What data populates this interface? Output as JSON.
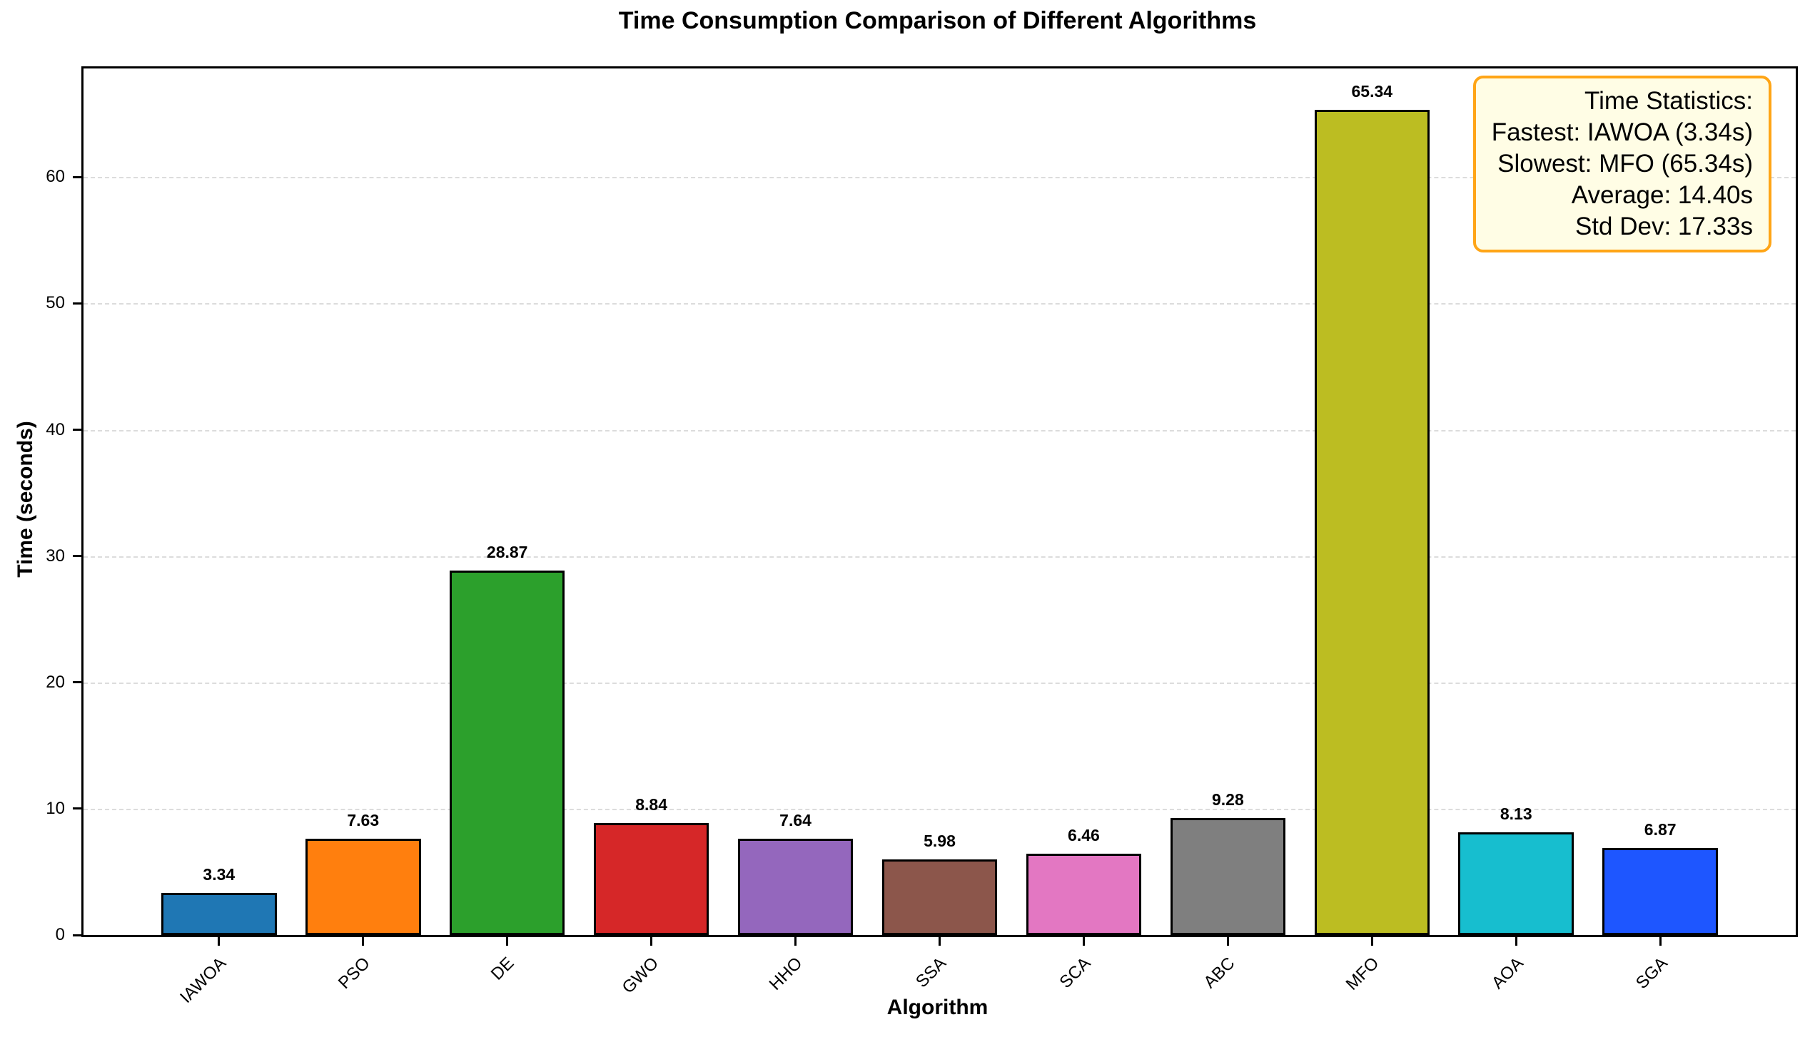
{
  "chart_data": {
    "type": "bar",
    "title": "Time Consumption Comparison of Different Algorithms",
    "xlabel": "Algorithm",
    "ylabel": "Time (seconds)",
    "categories": [
      "IAWOA",
      "PSO",
      "DE",
      "GWO",
      "HHO",
      "SSA",
      "SCA",
      "ABC",
      "MFO",
      "AOA",
      "SGA"
    ],
    "values": [
      3.34,
      7.63,
      28.87,
      8.84,
      7.64,
      5.98,
      6.46,
      9.28,
      65.34,
      8.13,
      6.87
    ],
    "bar_labels": [
      "3.34",
      "7.63",
      "28.87",
      "8.84",
      "7.64",
      "5.98",
      "6.46",
      "9.28",
      "65.34",
      "8.13",
      "6.87"
    ],
    "colors": [
      "#1f77b4",
      "#ff7f0e",
      "#2ca02c",
      "#d62728",
      "#9467bd",
      "#8c564b",
      "#e377c2",
      "#7f7f7f",
      "#bcbd22",
      "#17becf",
      "#1e56ff"
    ],
    "bar_edge_color": "#000000",
    "yticks": [
      0,
      10,
      20,
      30,
      40,
      50,
      60
    ],
    "ylim": [
      0,
      68.6
    ],
    "grid": "horizontal-dashed",
    "gridline_color": "#dcdcdc",
    "legend_position": "none"
  },
  "stats_box": {
    "background": "#fffde5",
    "border_color": "#ffa516",
    "lines": [
      "Time Statistics:",
      "Fastest: IAWOA (3.34s)",
      "Slowest: MFO (65.34s)",
      "Average: 14.40s",
      "Std Dev: 17.33s"
    ]
  }
}
